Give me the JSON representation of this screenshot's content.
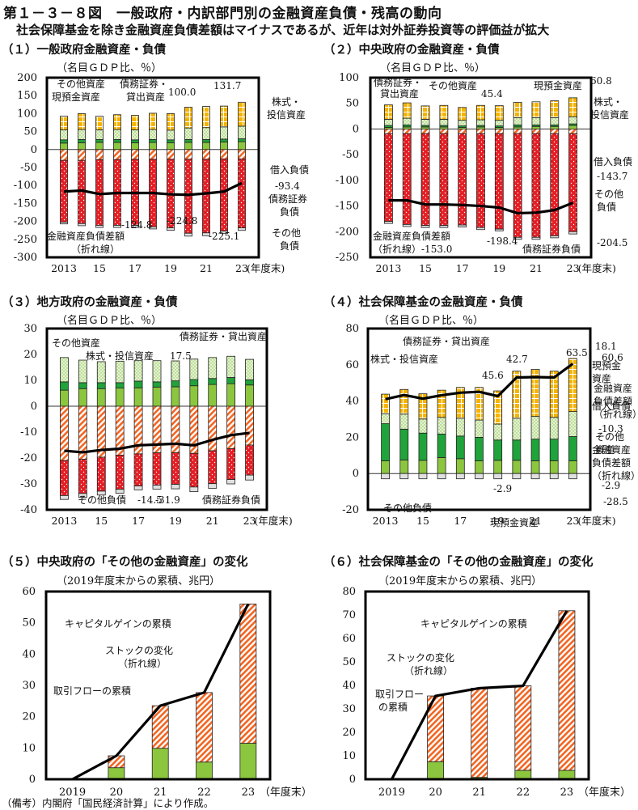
{
  "header": {
    "title": "第１－３－８図　一般政府・内訳部門別の金融資産負債・残高の動向",
    "subtitle": "社会保障基金を除き金融資産負債差額はマイナスであるが、近年は対外証券投資等の評価益が拡大"
  },
  "footnote": "（備考）内閣府「国民経済計算」により作成。",
  "colors": {
    "stocks": "#F5B400",
    "other_assets": "#C8E6A0",
    "debt_loan_assets": "#1FA33A",
    "cash_deposits": "#8CC63F",
    "borrowings": "#F26522",
    "debt_securities_liab": "#E31E24",
    "other_liab": "#D9D9D9",
    "line": "#000000"
  },
  "chart_data": [
    {
      "id": "p1",
      "type": "bar",
      "stacked": true,
      "title": "（１）一般政府金融資産・負債",
      "ylabel": "（名目ＧＤＰ比、％）",
      "xunit": "(年度末)",
      "categories": [
        "2013",
        "2014",
        "2015",
        "2016",
        "2017",
        "2018",
        "2019",
        "2020",
        "2021",
        "2022",
        "2023"
      ],
      "tick_labels": [
        "2013",
        "15",
        "17",
        "19",
        "21",
        "23"
      ],
      "ylim": [
        -300,
        200
      ],
      "yticks": [
        200,
        150,
        100,
        50,
        0,
        -50,
        -100,
        -150,
        -200,
        -250,
        -300
      ],
      "series": [
        {
          "name": "現預金資産",
          "key": "cash_deposits",
          "values": [
            18,
            19,
            20,
            20,
            19,
            20,
            19,
            20,
            20,
            21,
            22
          ]
        },
        {
          "name": "債務証券・貸出資産",
          "key": "debt_loan_assets",
          "values": [
            9,
            9,
            8,
            8,
            8,
            8,
            8,
            8,
            8,
            8,
            8
          ]
        },
        {
          "name": "その他資産",
          "key": "other_assets",
          "values": [
            28,
            28,
            27,
            28,
            28,
            28,
            27,
            32,
            33,
            34,
            35
          ]
        },
        {
          "name": "株式・投信資産",
          "key": "stocks",
          "values": [
            38,
            44,
            38,
            41,
            40,
            45,
            46,
            58,
            59,
            58,
            66.7
          ]
        },
        {
          "name": "借入負債",
          "key": "borrowings",
          "values": [
            -30,
            -30,
            -28,
            -28,
            -27,
            -27,
            -27,
            -27,
            -27,
            -26,
            -26
          ]
        },
        {
          "name": "債務証券負債",
          "key": "debt_securities_liab",
          "values": [
            -172,
            -176,
            -183,
            -183,
            -184,
            -188,
            -191,
            -206,
            -205,
            -201,
            -192
          ]
        },
        {
          "name": "その他負債",
          "key": "other_liab",
          "values": [
            -5,
            -6,
            -6,
            -6,
            -6,
            -6,
            -7,
            -8,
            -8,
            -7,
            -7.1
          ]
        }
      ],
      "line": {
        "name": "金融資産負債差額（折れ線）",
        "values": [
          -117,
          -114,
          -124,
          -121,
          -121,
          -121,
          -124.8,
          -126,
          -122,
          -117,
          -93.4
        ]
      },
      "annotations": [
        {
          "text": "その他資産"
        },
        {
          "text": "現預金資産"
        },
        {
          "text": "債務証券・"
        },
        {
          "text": "貸出資産"
        },
        {
          "text": "100.0"
        },
        {
          "text": "131.7"
        },
        {
          "text": "株式・"
        },
        {
          "text": "投信資産"
        },
        {
          "text": "借入負債"
        },
        {
          "text": "-93.4"
        },
        {
          "text": "債務証券"
        },
        {
          "text": "負債"
        },
        {
          "text": "その他"
        },
        {
          "text": "負債"
        },
        {
          "text": "金融資産負債差額"
        },
        {
          "text": "（折れ線）"
        },
        {
          "text": "-124.8"
        },
        {
          "text": "-224.8"
        },
        {
          "text": "-225.1"
        }
      ]
    },
    {
      "id": "p2",
      "type": "bar",
      "stacked": true,
      "title": "（２）中央政府の金融資産・負債",
      "ylabel": "（名目ＧＤＰ比、％）",
      "xunit": "(年度末)",
      "categories": [
        "2013",
        "2014",
        "2015",
        "2016",
        "2017",
        "2018",
        "2019",
        "2020",
        "2021",
        "2022",
        "2023"
      ],
      "tick_labels": [
        "2013",
        "15",
        "17",
        "19",
        "21",
        "23"
      ],
      "ylim": [
        -250,
        100
      ],
      "yticks": [
        100,
        50,
        0,
        -50,
        -100,
        -150,
        -200,
        -250
      ],
      "series": [
        {
          "name": "現預金資産",
          "key": "cash_deposits",
          "values": [
            3,
            4,
            4,
            4,
            3,
            4,
            3,
            4,
            5,
            5,
            7
          ]
        },
        {
          "name": "債務証券・貸出資産",
          "key": "debt_loan_assets",
          "values": [
            4,
            4,
            3,
            3,
            3,
            3,
            3,
            4,
            3,
            3,
            3
          ]
        },
        {
          "name": "その他資産",
          "key": "other_assets",
          "values": [
            12,
            13,
            12,
            12,
            11,
            11,
            11,
            14,
            14,
            14,
            14
          ]
        },
        {
          "name": "株式・投信資産",
          "key": "stocks",
          "values": [
            28,
            30,
            26,
            27,
            25,
            28,
            28.4,
            30,
            31,
            33,
            36.8
          ]
        },
        {
          "name": "借入負債",
          "key": "borrowings",
          "values": [
            -9,
            -9,
            -9,
            -9,
            -9,
            -9,
            -9,
            -9,
            -9,
            -9,
            -9
          ]
        },
        {
          "name": "債務証券負債",
          "key": "debt_securities_liab",
          "values": [
            -171,
            -177,
            -179,
            -179,
            -178,
            -183,
            -186,
            -202,
            -202,
            -199,
            -191
          ]
        },
        {
          "name": "その他負債",
          "key": "other_liab",
          "values": [
            -4,
            -4,
            -4,
            -4,
            -4,
            -4,
            -3.4,
            -4,
            -4,
            -4,
            -4.5
          ]
        }
      ],
      "line": {
        "name": "金融資産負債差額（折れ線）",
        "values": [
          -139,
          -139,
          -147,
          -147,
          -148,
          -150,
          -153.0,
          -164,
          -163,
          -158,
          -143.7
        ]
      },
      "annotations": [
        {
          "text": "債務証券・"
        },
        {
          "text": "貸出資産"
        },
        {
          "text": "その他資産"
        },
        {
          "text": "45.4"
        },
        {
          "text": "現預金資産"
        },
        {
          "text": "60.8"
        },
        {
          "text": "株式・"
        },
        {
          "text": "投信資産"
        },
        {
          "text": "借入負債"
        },
        {
          "text": "-143.7"
        },
        {
          "text": "その他"
        },
        {
          "text": "負債"
        },
        {
          "text": "金融資産負債差額"
        },
        {
          "text": "（折れ線）-153.0"
        },
        {
          "text": "-198.4"
        },
        {
          "text": "債務証券負債"
        },
        {
          "text": "-204.5"
        }
      ]
    },
    {
      "id": "p3",
      "type": "bar",
      "stacked": true,
      "title": "（３）地方政府の金融資産・負債",
      "ylabel": "（名目ＧＤＰ比、％）",
      "xunit": "(年度末)",
      "categories": [
        "2013",
        "2014",
        "2015",
        "2016",
        "2017",
        "2018",
        "2019",
        "2020",
        "2021",
        "2022",
        "2023"
      ],
      "tick_labels": [
        "2013",
        "15",
        "17",
        "19",
        "21",
        "23"
      ],
      "ylim": [
        -40,
        30
      ],
      "yticks": [
        30,
        20,
        10,
        0,
        -10,
        -20,
        -30,
        -40
      ],
      "series": [
        {
          "name": "現預金資産",
          "key": "cash_deposits",
          "values": [
            6.2,
            6.8,
            6.8,
            7.0,
            7.1,
            7.4,
            7.5,
            7.9,
            8.4,
            8.7,
            8.2
          ]
        },
        {
          "name": "債務証券・貸出資産",
          "key": "debt_loan_assets",
          "values": [
            3.2,
            2.3,
            2.3,
            2.1,
            2.6,
            2.0,
            2.3,
            2.4,
            2.3,
            2.4,
            2.0
          ]
        },
        {
          "name": "株式・投信資産",
          "key": "other_assets",
          "values": [
            9.4,
            8.7,
            8.1,
            8.3,
            7.9,
            8.2,
            7.7,
            7.9,
            8.1,
            8.2,
            7.9
          ]
        },
        {
          "name": "借入負債",
          "key": "borrowings",
          "values": [
            -21,
            -20.5,
            -19.7,
            -18.9,
            -18.4,
            -18,
            -18,
            -18.2,
            -17.2,
            -16.4,
            -15
          ]
        },
        {
          "name": "債務証券負債",
          "key": "debt_securities_liab",
          "values": [
            -13.5,
            -13.2,
            -13.1,
            -13.2,
            -12.4,
            -12.5,
            -12.2,
            -13,
            -12.7,
            -11.9,
            -11.6
          ]
        },
        {
          "name": "その他負債",
          "key": "other_liab",
          "values": [
            -1.5,
            -1.5,
            -1.5,
            -1.5,
            -1.5,
            -1.5,
            -1.7,
            -1.8,
            -1.8,
            -1.7,
            -1.9
          ]
        }
      ],
      "line": {
        "name": "金融資産負債差額（折れ線）",
        "values": [
          -17.2,
          -17.8,
          -16.9,
          -16.4,
          -15.1,
          -14.8,
          -14.5,
          -15.1,
          -13.0,
          -11.2,
          -10.3
        ]
      },
      "annotations": [
        {
          "text": "その他資産"
        },
        {
          "text": "株式・投信資産"
        },
        {
          "text": "17.5"
        },
        {
          "text": "債務証券・貸出資産"
        },
        {
          "text": "18.1"
        },
        {
          "text": "現預金"
        },
        {
          "text": "資産"
        },
        {
          "text": "借入負債"
        },
        {
          "text": "-10.3"
        },
        {
          "text": "金融資産"
        },
        {
          "text": "負債差額"
        },
        {
          "text": "（折れ線）"
        },
        {
          "text": "その他負債"
        },
        {
          "text": "-14.5"
        },
        {
          "text": "-31.9"
        },
        {
          "text": "債務証券負債"
        },
        {
          "text": "-28.5"
        }
      ]
    },
    {
      "id": "p4",
      "type": "bar",
      "stacked": true,
      "title": "（４）社会保障基金の金融資産・負債",
      "ylabel": "（名目ＧＤＰ比、％）",
      "xunit": "(年度末)",
      "categories": [
        "2013",
        "2014",
        "2015",
        "2016",
        "2017",
        "2018",
        "2019",
        "2020",
        "2021",
        "2022",
        "2023"
      ],
      "tick_labels": [
        "2013",
        "15",
        "17",
        "19",
        "21",
        "23"
      ],
      "ylim": [
        -20,
        80
      ],
      "yticks": [
        80,
        60,
        40,
        20,
        0,
        -20
      ],
      "series": [
        {
          "name": "現預金資産",
          "key": "cash_deposits",
          "values": [
            7,
            7.5,
            7.3,
            8.8,
            8.2,
            7,
            7.3,
            7.3,
            7,
            7,
            7
          ]
        },
        {
          "name": "債務証券・貸出資産",
          "key": "debt_loan_assets",
          "values": [
            20.5,
            17,
            15,
            13,
            12.5,
            13,
            11.2,
            11.2,
            12,
            12,
            13.4
          ]
        },
        {
          "name": "その他資産",
          "key": "other_assets",
          "values": [
            5.5,
            8.3,
            7.8,
            9.2,
            9.8,
            9.5,
            8.8,
            12,
            12.5,
            12,
            13.8
          ]
        },
        {
          "name": "株式・投信資産",
          "key": "stocks",
          "values": [
            10.8,
            13.6,
            13.9,
            15,
            17,
            18,
            18.3,
            26,
            26,
            25.5,
            29.3
          ]
        },
        {
          "name": "その他負債",
          "key": "other_liab",
          "values": [
            -2.9,
            -2.9,
            -2.9,
            -2.9,
            -2.9,
            -2.9,
            -2.9,
            -2.9,
            -2.9,
            -2.9,
            -2.9
          ]
        }
      ],
      "line": {
        "name": "金融資産負債差額（折れ線）",
        "values": [
          41,
          43.3,
          41.3,
          43.2,
          44.6,
          45.1,
          42.7,
          53,
          53.2,
          53,
          60.6
        ]
      },
      "annotations": [
        {
          "text": "債務証券・貸出資産"
        },
        {
          "text": "株式・投信資産"
        },
        {
          "text": "42.7"
        },
        {
          "text": "45.6"
        },
        {
          "text": "63.5"
        },
        {
          "text": "60.6"
        },
        {
          "text": "金融資産"
        },
        {
          "text": "負債差額"
        },
        {
          "text": "（折れ線）"
        },
        {
          "text": "その他"
        },
        {
          "text": "資産"
        },
        {
          "text": "その他負債"
        },
        {
          "text": "-2.9"
        },
        {
          "text": "現預金資産"
        },
        {
          "text": "-2.9"
        }
      ]
    },
    {
      "id": "p5",
      "type": "bar",
      "stacked": true,
      "title": "（５）中央政府の「その他の金融資産」の変化",
      "ylabel": "（2019年度末からの累積、兆円）",
      "xunit": "（年度末）",
      "categories": [
        "2019",
        "20",
        "21",
        "22",
        "23"
      ],
      "tick_labels": [
        "2019",
        "20",
        "21",
        "22",
        "23"
      ],
      "ylim": [
        0,
        60
      ],
      "yticks": [
        60,
        50,
        40,
        30,
        20,
        10,
        0
      ],
      "series": [
        {
          "name": "取引フローの累積",
          "key": "cash_deposits",
          "values": [
            0,
            3.7,
            9.9,
            5.5,
            11.5
          ]
        },
        {
          "name": "キャピタルゲインの累積",
          "key": "borrowings",
          "values": [
            0,
            3.8,
            13.6,
            22.2,
            44.5
          ]
        }
      ],
      "line": {
        "name": "ストックの変化（折れ線）",
        "values": [
          0,
          7.5,
          23.5,
          27.7,
          56.0
        ]
      },
      "annotations": [
        {
          "text": "キャピタルゲインの累積"
        },
        {
          "text": "ストックの変化"
        },
        {
          "text": "（折れ線）"
        },
        {
          "text": "取引フローの累積"
        }
      ]
    },
    {
      "id": "p6",
      "type": "bar",
      "stacked": true,
      "title": "（６）社会保障基金の「その他の金融資産」の変化",
      "ylabel": "（2019年度末からの累積、兆円）",
      "xunit": "（年度末）",
      "categories": [
        "2019",
        "20",
        "21",
        "22",
        "23"
      ],
      "tick_labels": [
        "2019",
        "20",
        "21",
        "22",
        "23"
      ],
      "ylim": [
        0,
        80
      ],
      "yticks": [
        80,
        70,
        60,
        50,
        40,
        30,
        20,
        10,
        0
      ],
      "series": [
        {
          "name": "取引フローの累積",
          "key": "cash_deposits",
          "values": [
            0,
            7.5,
            0.8,
            3.8,
            3.8
          ]
        },
        {
          "name": "キャピタルゲインの累積",
          "key": "borrowings",
          "values": [
            0,
            28.0,
            38.0,
            36.0,
            68.0
          ]
        }
      ],
      "line": {
        "name": "ストックの変化（折れ線）",
        "values": [
          0,
          35.5,
          38.8,
          39.8,
          71.8
        ]
      },
      "annotations": [
        {
          "text": "キャピタルゲインの累積"
        },
        {
          "text": "ストックの変化"
        },
        {
          "text": "（折れ線）"
        },
        {
          "text": "取引フロー"
        },
        {
          "text": "の累積"
        }
      ]
    }
  ]
}
